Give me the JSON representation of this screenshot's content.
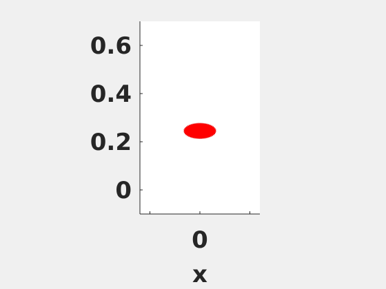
{
  "chart_data": {
    "type": "scatter",
    "xlabel": "x",
    "ylabel": "",
    "title": "",
    "xlim": [
      -0.12,
      0.12
    ],
    "ylim": [
      -0.1,
      0.7
    ],
    "xticks": [
      -0.1,
      0,
      0.1
    ],
    "xtick_labels": [
      "",
      "0",
      ""
    ],
    "yticks": [
      0,
      0.2,
      0.4,
      0.6
    ],
    "ytick_labels": [
      "0",
      "0.2",
      "0.4",
      "0.6"
    ],
    "grid": false,
    "marker_color": "#ff0000",
    "series": [
      {
        "points": [
          {
            "x": 0,
            "y": 0.245
          }
        ]
      }
    ]
  }
}
